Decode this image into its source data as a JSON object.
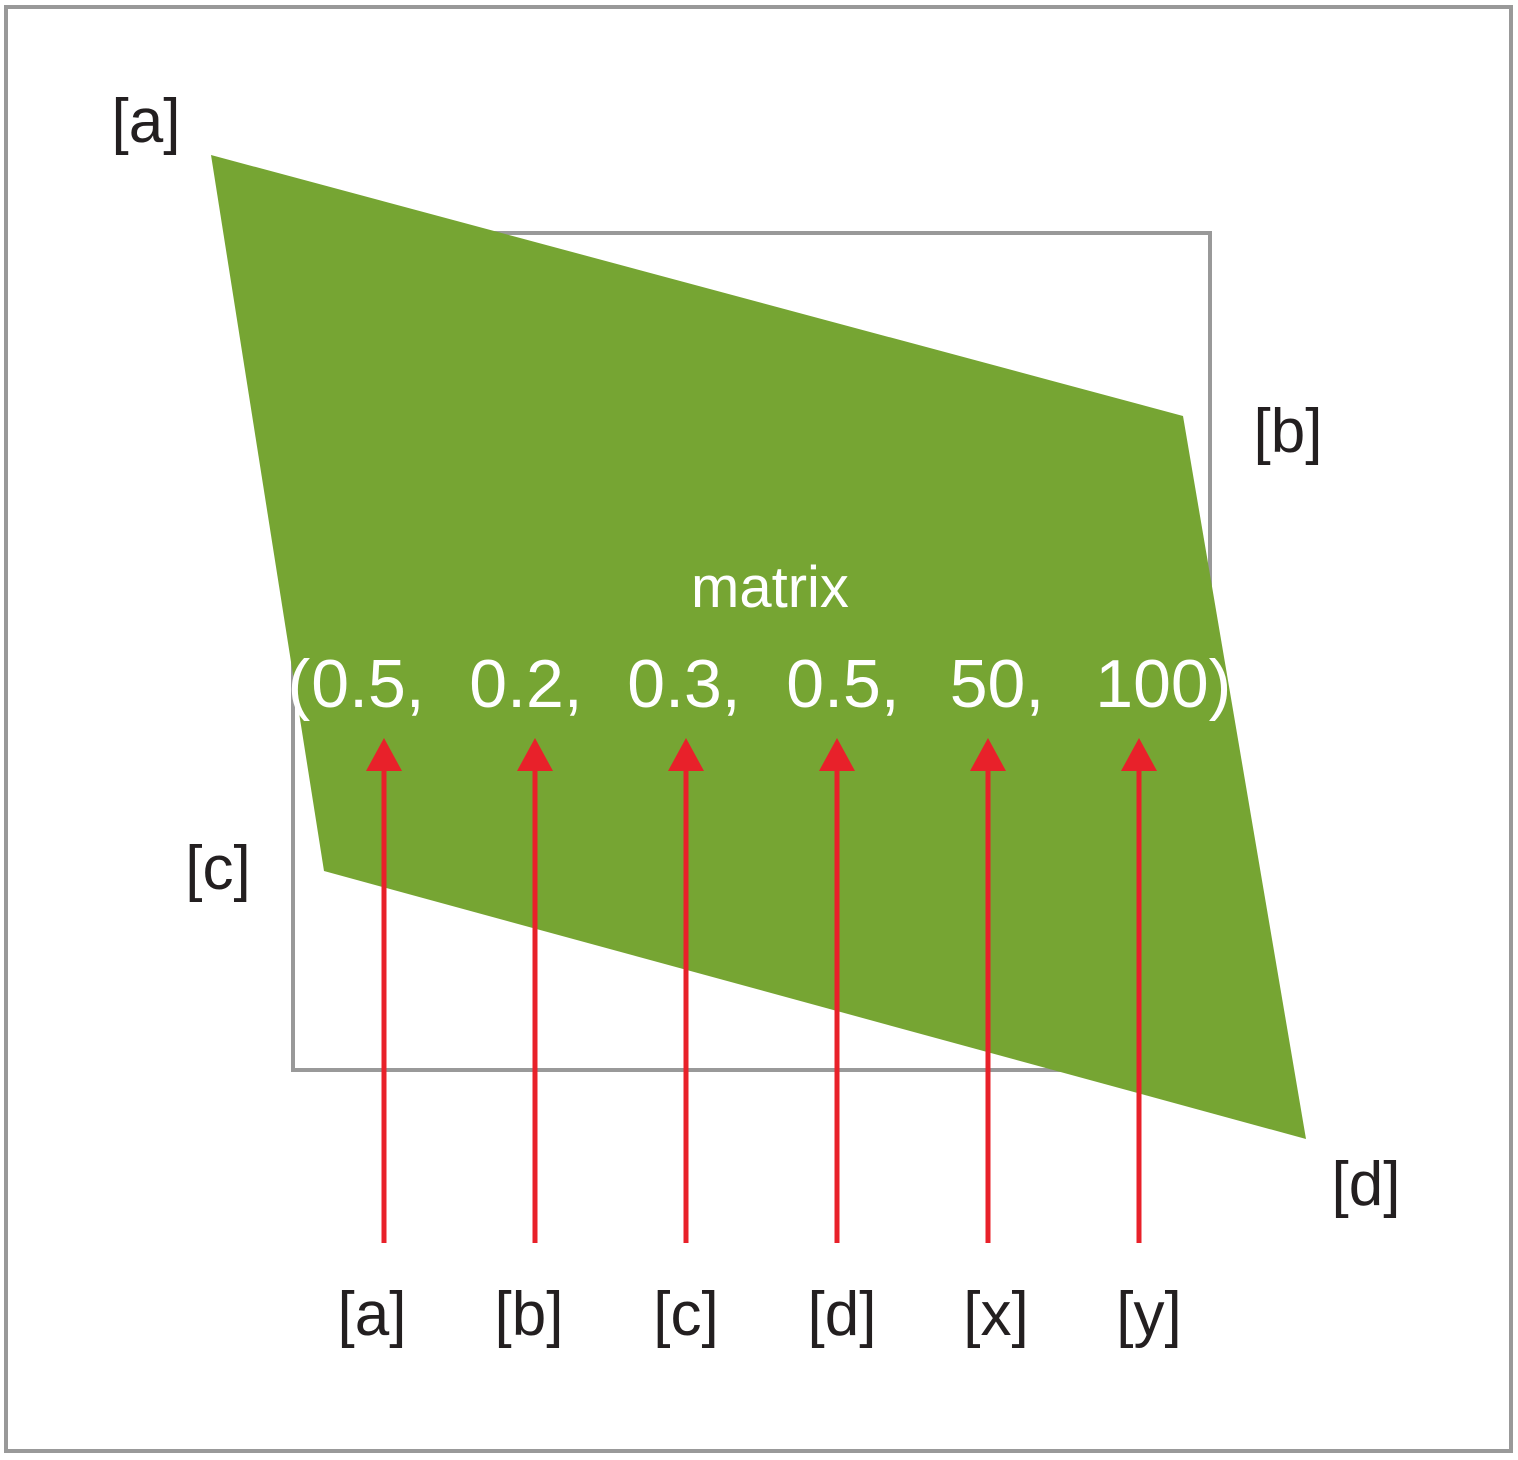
{
  "corner_labels": {
    "a": "[a]",
    "b": "[b]",
    "c": "[c]",
    "d": "[d]"
  },
  "matrix": {
    "title": "matrix",
    "open": "(",
    "close": ")",
    "values": [
      "0.5,",
      "0.2,",
      "0.3,",
      "0.5,",
      "50,",
      "100"
    ]
  },
  "param_labels": [
    "[a]",
    "[b]",
    "[c]",
    "[d]",
    "[x]",
    "[y]"
  ],
  "colors": {
    "shape_fill": "#76a533",
    "arrow": "#e8212a",
    "frame": "#999999",
    "text": "#231f20",
    "matrix_text": "#ffffff"
  }
}
